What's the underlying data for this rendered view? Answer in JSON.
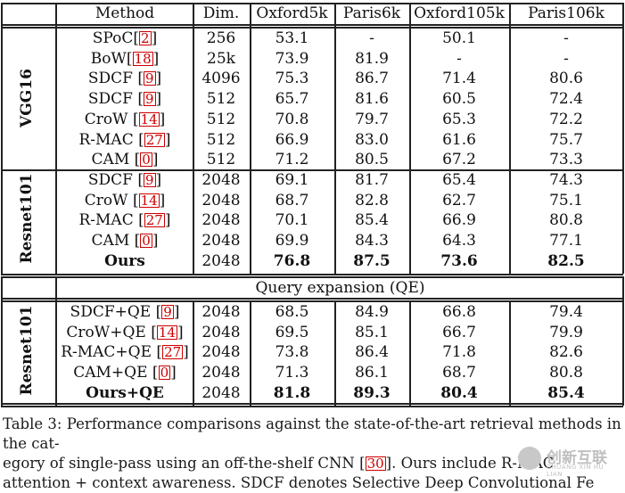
{
  "table": {
    "headers": [
      "Method",
      "Dim.",
      "Oxford5k",
      "Paris6k",
      "Oxford105k",
      "Paris106k"
    ],
    "groups": {
      "vgg": "VGG16",
      "resnet_a": "Resnet101",
      "resnet_b": "Resnet101"
    },
    "section_title": "Query expansion (QE)",
    "vgg_rows": [
      {
        "method": "SPoC",
        "ref": "2",
        "dim": "256",
        "o5": "53.1",
        "p6": "-",
        "o105": "50.1",
        "p106": "-"
      },
      {
        "method": "BoW",
        "ref": "18",
        "dim": "25k",
        "o5": "73.9",
        "p6": "81.9",
        "o105": "-",
        "p106": "-"
      },
      {
        "method": "SDCF ",
        "ref": "9",
        "dim": "4096",
        "o5": "75.3",
        "p6": "86.7",
        "o105": "71.4",
        "p106": "80.6"
      },
      {
        "method": "SDCF ",
        "ref": "9",
        "dim": "512",
        "o5": "65.7",
        "p6": "81.6",
        "o105": "60.5",
        "p106": "72.4"
      },
      {
        "method": "CroW ",
        "ref": "14",
        "dim": "512",
        "o5": "70.8",
        "p6": "79.7",
        "o105": "65.3",
        "p106": "72.2"
      },
      {
        "method": "R-MAC ",
        "ref": "27",
        "dim": "512",
        "o5": "66.9",
        "p6": "83.0",
        "o105": "61.6",
        "p106": "75.7"
      },
      {
        "method": "CAM ",
        "ref": "0",
        "dim": "512",
        "o5": "71.2",
        "p6": "80.5",
        "o105": "67.2",
        "p106": "73.3"
      }
    ],
    "resnet_rows": [
      {
        "method": "SDCF ",
        "ref": "9",
        "dim": "2048",
        "o5": "69.1",
        "p6": "81.7",
        "o105": "65.4",
        "p106": "74.3"
      },
      {
        "method": "CroW ",
        "ref": "14",
        "dim": "2048",
        "o5": "68.7",
        "p6": "82.8",
        "o105": "62.7",
        "p106": "75.1"
      },
      {
        "method": "R-MAC ",
        "ref": "27",
        "dim": "2048",
        "o5": "70.1",
        "p6": "85.4",
        "o105": "66.9",
        "p106": "80.8"
      },
      {
        "method": "CAM ",
        "ref": "0",
        "dim": "2048",
        "o5": "69.9",
        "p6": "84.3",
        "o105": "64.3",
        "p106": "77.1"
      },
      {
        "method": "Ours",
        "ref": "",
        "dim": "2048",
        "o5": "76.8",
        "p6": "87.5",
        "o105": "73.6",
        "p106": "82.5",
        "bold": true
      }
    ],
    "qe_rows": [
      {
        "method": "SDCF+QE ",
        "ref": "9",
        "dim": "2048",
        "o5": "68.5",
        "p6": "84.9",
        "o105": "66.8",
        "p106": "79.4"
      },
      {
        "method": "CroW+QE ",
        "ref": "14",
        "dim": "2048",
        "o5": "69.5",
        "p6": "85.1",
        "o105": "66.7",
        "p106": "79.9"
      },
      {
        "method": "R-MAC+QE ",
        "ref": "27",
        "dim": "2048",
        "o5": "73.8",
        "p6": "86.4",
        "o105": "71.8",
        "p106": "82.6"
      },
      {
        "method": "CAM+QE ",
        "ref": "0",
        "dim": "2048",
        "o5": "71.3",
        "p6": "86.1",
        "o105": "68.7",
        "p106": "80.8"
      },
      {
        "method": "Ours+QE",
        "ref": "",
        "dim": "2048",
        "o5": "81.8",
        "p6": "89.3",
        "o105": "80.4",
        "p106": "85.4",
        "bold": true
      }
    ]
  },
  "caption": {
    "line1": "Table 3: Performance comparisons against the state-of-the-art retrieval methods in the cat-",
    "line2a": "egory of single-pass using an off-the-shelf CNN [",
    "line2ref": "30",
    "line2b": "].  Ours include R-MAC",
    "line3": "attention + context awareness. SDCF denotes Selective Deep Convolutional Fe"
  },
  "watermark": {
    "text": "创新互联",
    "sub": "CHUANG XIN HU LIAN"
  }
}
